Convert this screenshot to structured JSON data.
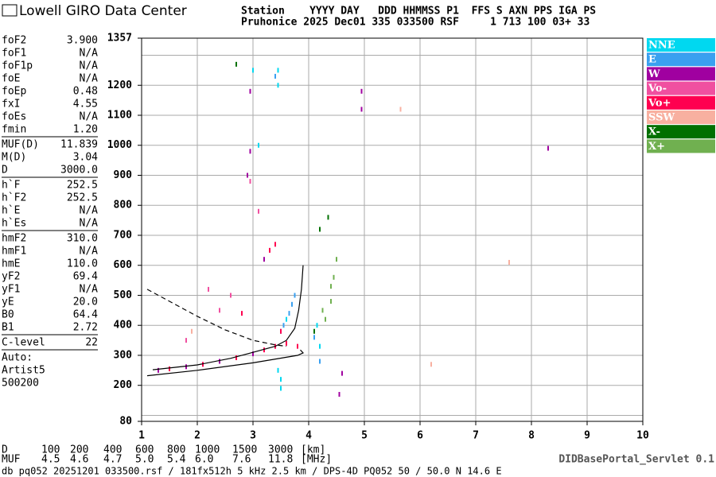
{
  "header": {
    "logo": "Lowell GIRO Data Center",
    "line1": "Station    YYYY DAY   DDD HHMMSS P1  FFS S AXN PPS IGA PS",
    "line2": "Pruhonice 2025 Dec01 335 033500 RSF     1 713 100 03+ 33"
  },
  "params": [
    [
      [
        "foF2",
        "3.900"
      ],
      [
        "foF1",
        "N/A"
      ],
      [
        "foF1p",
        "N/A"
      ],
      [
        "foE",
        "N/A"
      ],
      [
        "foEp",
        "0.48"
      ],
      [
        "fxI",
        "4.55"
      ],
      [
        "foEs",
        "N/A"
      ],
      [
        "fmin",
        "1.20"
      ]
    ],
    [
      [
        "MUF(D)",
        "11.839"
      ],
      [
        "M(D)",
        "3.04"
      ],
      [
        "D",
        "3000.0"
      ]
    ],
    [
      [
        "h`F",
        "252.5"
      ],
      [
        "h`F2",
        "252.5"
      ],
      [
        "h`E",
        "N/A"
      ],
      [
        "h`Es",
        "N/A"
      ]
    ],
    [
      [
        "hmF2",
        "310.0"
      ],
      [
        "hmF1",
        "N/A"
      ],
      [
        "hmE",
        "110.0"
      ],
      [
        "yF2",
        "69.4"
      ],
      [
        "yF1",
        "N/A"
      ],
      [
        "yE",
        "20.0"
      ],
      [
        "B0",
        "64.4"
      ],
      [
        "B1",
        "2.72"
      ]
    ],
    [
      [
        "C-level",
        "22"
      ]
    ],
    [
      [
        "Auto:",
        ""
      ],
      [
        "Artist5",
        ""
      ],
      [
        "500200",
        ""
      ]
    ]
  ],
  "chart_data": {
    "type": "scatter",
    "xlim": [
      1,
      10
    ],
    "xticks": [
      1,
      2,
      3,
      4,
      5,
      6,
      7,
      8,
      9,
      10
    ],
    "ylim": [
      80,
      1357
    ],
    "yticks": [
      80,
      200,
      300,
      400,
      500,
      600,
      700,
      800,
      900,
      1000,
      1100,
      1200,
      1357
    ],
    "ygrid": [
      100,
      200,
      300,
      400,
      500,
      600,
      700,
      800,
      900,
      1000,
      1100,
      1200,
      1300
    ],
    "grid": true,
    "series": [
      {
        "name": "NNE",
        "color": "#00d8f0",
        "x": [
          3.45,
          3.5,
          3.5,
          3.45,
          3.45,
          3.0,
          3.1,
          3.5,
          3.6,
          4.2,
          4.15
        ],
        "values": [
          250,
          220,
          190,
          1250,
          1200,
          1250,
          1000,
          380,
          420,
          330,
          400
        ]
      },
      {
        "name": "E",
        "color": "#3aa0f0",
        "x": [
          3.55,
          3.65,
          3.7,
          3.75,
          3.4,
          4.1,
          4.2
        ],
        "values": [
          400,
          440,
          470,
          500,
          1230,
          360,
          280
        ]
      },
      {
        "name": "W",
        "color": "#a000a0",
        "x": [
          1.3,
          1.8,
          2.4,
          3.0,
          2.95,
          2.9,
          2.95,
          4.95,
          4.95,
          8.3,
          4.6,
          3.2,
          4.55
        ],
        "values": [
          250,
          262,
          280,
          305,
          980,
          900,
          1180,
          1180,
          1120,
          990,
          240,
          620,
          170
        ]
      },
      {
        "name": "Vo-",
        "color": "#f050a0",
        "x": [
          2.4,
          2.6,
          2.2,
          3.1,
          2.95,
          1.8
        ],
        "values": [
          450,
          500,
          520,
          780,
          880,
          350
        ]
      },
      {
        "name": "Vo+",
        "color": "#ff0050",
        "x": [
          1.5,
          2.1,
          2.7,
          3.2,
          3.4,
          3.6,
          3.3,
          3.4,
          2.8,
          3.5,
          3.8
        ],
        "values": [
          255,
          270,
          292,
          318,
          330,
          340,
          650,
          670,
          440,
          380,
          330
        ]
      },
      {
        "name": "SSW",
        "color": "#f8b0a0",
        "x": [
          5.65,
          7.6,
          1.9,
          6.2
        ],
        "values": [
          1120,
          610,
          380,
          270
        ]
      },
      {
        "name": "X-",
        "color": "#007000",
        "x": [
          4.2,
          4.35,
          4.1,
          2.7
        ],
        "values": [
          720,
          760,
          380,
          1270
        ]
      },
      {
        "name": "X+",
        "color": "#70b050",
        "x": [
          4.3,
          4.4,
          4.45,
          4.5,
          4.25,
          4.4
        ],
        "values": [
          420,
          480,
          560,
          620,
          450,
          530
        ]
      }
    ],
    "lines": [
      {
        "color": "#000000",
        "dash": false,
        "x": [
          1.2,
          2.0,
          2.6,
          3.0,
          3.4,
          3.6,
          3.75,
          3.82,
          3.87,
          3.9
        ],
        "values": [
          252,
          268,
          290,
          310,
          330,
          350,
          390,
          450,
          520,
          600
        ]
      },
      {
        "color": "#000000",
        "dash": false,
        "x": [
          1.1,
          2.0,
          3.0,
          3.8,
          3.9,
          3.85
        ],
        "values": [
          232,
          250,
          275,
          300,
          308,
          318
        ]
      },
      {
        "color": "#000000",
        "dash": true,
        "x": [
          1.1,
          1.5,
          2.0,
          2.5,
          3.0,
          3.4,
          3.6
        ],
        "values": [
          520,
          480,
          430,
          385,
          350,
          335,
          330
        ]
      }
    ]
  },
  "footer": {
    "d_row": [
      "D",
      "100",
      "200",
      "400",
      "600",
      "800",
      "1000",
      "1500",
      "3000",
      "[km]"
    ],
    "muf_row": [
      "MUF",
      "4.5",
      "4.6",
      "4.7",
      "5.0",
      "5.4",
      "6.0",
      "7.6",
      "11.8",
      "[MHz]"
    ],
    "info": "db pq052 20251201 033500.rsf / 181fx512h 5 kHz 2.5 km / DPS-4D PQ052 50 / 50.0 N 14.6 E",
    "servlet": "DIDBasePortal_Servlet 0.1"
  }
}
